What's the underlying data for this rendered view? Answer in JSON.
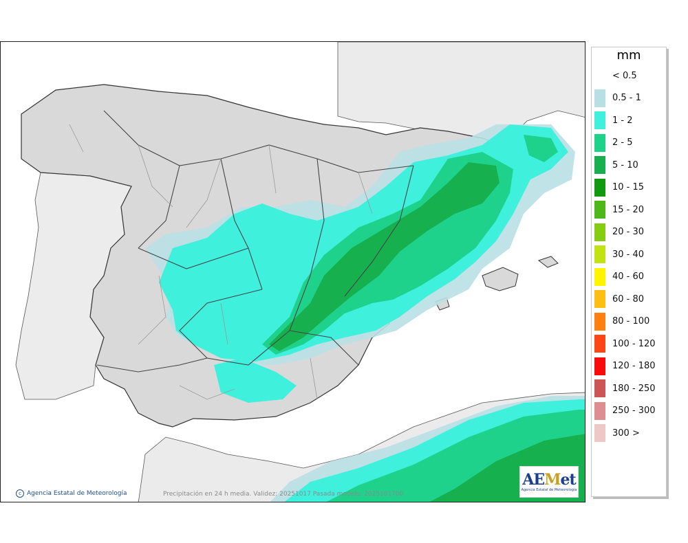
{
  "legend": {
    "unit": "mm",
    "items": [
      {
        "label": "< 0.5",
        "color": "#ffffff"
      },
      {
        "label": "0.5 - 1",
        "color": "#b8e0e4"
      },
      {
        "label": "1 - 2",
        "color": "#3ff0dd"
      },
      {
        "label": "2 - 5",
        "color": "#1fd28c"
      },
      {
        "label": "5 - 10",
        "color": "#17b04e"
      },
      {
        "label": "10 - 15",
        "color": "#0f9a0f"
      },
      {
        "label": "15 - 20",
        "color": "#4db81a"
      },
      {
        "label": "20 - 30",
        "color": "#86cc10"
      },
      {
        "label": "30 - 40",
        "color": "#c2e212"
      },
      {
        "label": "40 - 60",
        "color": "#fff400"
      },
      {
        "label": "60 - 80",
        "color": "#ffbe12"
      },
      {
        "label": "80 - 100",
        "color": "#ff7f0f"
      },
      {
        "label": "100 - 120",
        "color": "#ff4516"
      },
      {
        "label": "120 - 180",
        "color": "#f70b0b"
      },
      {
        "label": "180 - 250",
        "color": "#cd5555"
      },
      {
        "label": "250 - 300",
        "color": "#de8e8e"
      },
      {
        "label": "300 >",
        "color": "#eec7c7"
      }
    ]
  },
  "footer": {
    "credit": "Agencia Estatal de Meteorología",
    "note": "Precipitación en 24 h media. Validez: 20251017 Pasada modelo: 2025101700"
  },
  "logo": {
    "brand": "AEMet",
    "subtitle": "Agencia Estatal de Meteorología"
  },
  "colors": {
    "sea": "#ffffff",
    "land_foreign": "#ebebeb",
    "land_iberia": "#d9d9d9",
    "borders": "#333333"
  }
}
